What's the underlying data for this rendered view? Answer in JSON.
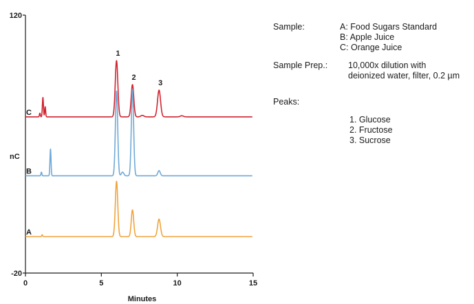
{
  "chart_data": {
    "type": "line",
    "xlabel": "Minutes",
    "ylabel": "nC",
    "xlim": [
      0,
      15
    ],
    "ylim": [
      -20,
      120
    ],
    "x_ticks": [
      "0",
      "5",
      "10",
      "15"
    ],
    "y_ticks": [
      "120",
      "-20"
    ],
    "series": [
      {
        "name": "C",
        "color": "#d0222e",
        "offset": 65,
        "peaks": [
          {
            "t": 1.15,
            "h": 10.5,
            "w": 0.035
          },
          {
            "t": 1.3,
            "h": 5.5,
            "w": 0.03
          },
          {
            "t": 0.95,
            "h": 2.0,
            "w": 0.03
          },
          {
            "t": 6.0,
            "h": 30.5,
            "w": 0.085
          },
          {
            "t": 7.05,
            "h": 17.5,
            "w": 0.085
          },
          {
            "t": 8.8,
            "h": 14.5,
            "w": 0.1
          },
          {
            "t": 7.7,
            "h": 0.8,
            "w": 0.1
          },
          {
            "t": 10.3,
            "h": 0.6,
            "w": 0.1
          }
        ]
      },
      {
        "name": "B",
        "color": "#6fa8d6",
        "offset": 33,
        "peaks": [
          {
            "t": 1.65,
            "h": 14.5,
            "w": 0.035
          },
          {
            "t": 1.05,
            "h": 2.0,
            "w": 0.03
          },
          {
            "t": 6.0,
            "h": 46,
            "w": 0.075
          },
          {
            "t": 7.05,
            "h": 47,
            "w": 0.075
          },
          {
            "t": 6.4,
            "h": 2.0,
            "w": 0.08
          },
          {
            "t": 8.8,
            "h": 2.8,
            "w": 0.08
          }
        ]
      },
      {
        "name": "A",
        "color": "#f0a33c",
        "offset": 0,
        "peaks": [
          {
            "t": 1.1,
            "h": 1.0,
            "w": 0.03
          },
          {
            "t": 6.0,
            "h": 30.0,
            "w": 0.08
          },
          {
            "t": 7.05,
            "h": 14.5,
            "w": 0.08
          },
          {
            "t": 8.8,
            "h": 9.5,
            "w": 0.095
          }
        ]
      }
    ],
    "peak_labels": [
      {
        "label": "1",
        "t": 6.0
      },
      {
        "label": "2",
        "t": 7.05
      },
      {
        "label": "3",
        "t": 8.8
      }
    ]
  },
  "legend": {
    "sample_key": "Sample:",
    "sample_values": [
      "A: Food Sugars Standard",
      "B: Apple Juice",
      "C: Orange Juice"
    ],
    "prep_key": "Sample Prep.:",
    "prep_values": [
      "10,000x dilution with",
      "deionized water, filter, 0.2 µm"
    ],
    "peaks_key": "Peaks:",
    "peaks_values": [
      "1.  Glucose",
      "2.  Fructose",
      "3.  Sucrose"
    ]
  }
}
